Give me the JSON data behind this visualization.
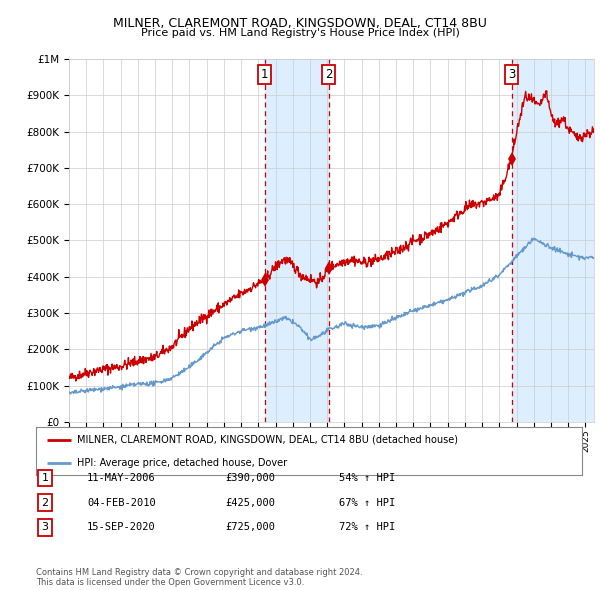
{
  "title": "MILNER, CLAREMONT ROAD, KINGSDOWN, DEAL, CT14 8BU",
  "subtitle": "Price paid vs. HM Land Registry's House Price Index (HPI)",
  "legend_line1": "MILNER, CLAREMONT ROAD, KINGSDOWN, DEAL, CT14 8BU (detached house)",
  "legend_line2": "HPI: Average price, detached house, Dover",
  "transaction1": {
    "label": "1",
    "date": "11-MAY-2006",
    "price": 390000,
    "pct": "54%",
    "year": 2006.36
  },
  "transaction2": {
    "label": "2",
    "date": "04-FEB-2010",
    "price": 425000,
    "pct": "67%",
    "year": 2010.09
  },
  "transaction3": {
    "label": "3",
    "date": "15-SEP-2020",
    "price": 725000,
    "pct": "72%",
    "year": 2020.71
  },
  "red_color": "#cc0000",
  "blue_color": "#6699cc",
  "shading_color": "#ddeeff",
  "grid_color": "#cccccc",
  "background_color": "#ffffff",
  "footer": "Contains HM Land Registry data © Crown copyright and database right 2024.\nThis data is licensed under the Open Government Licence v3.0.",
  "ylim": [
    0,
    1000000
  ],
  "xmin": 1995,
  "xmax": 2025.5
}
